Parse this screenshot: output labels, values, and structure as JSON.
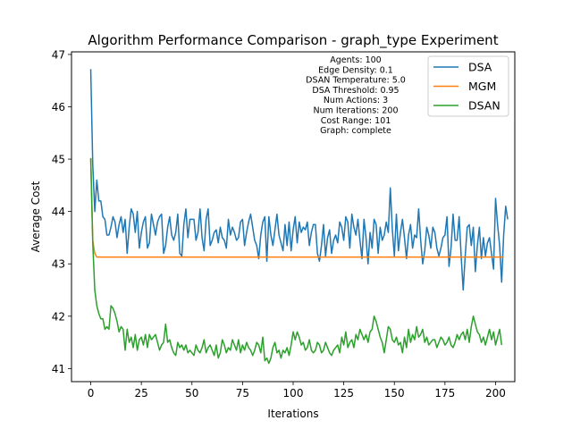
{
  "chart_data": {
    "type": "line",
    "title": "Algorithm Performance Comparison - graph_type Experiment",
    "xlabel": "Iterations",
    "ylabel": "Average Cost",
    "xlim": [
      -9.5,
      209.5
    ],
    "ylim": [
      40.75,
      47.05
    ],
    "xticks": [
      0,
      25,
      50,
      75,
      100,
      125,
      150,
      175,
      200
    ],
    "yticks": [
      41,
      42,
      43,
      44,
      45,
      46,
      47
    ],
    "grid": false,
    "legend_position": "top-right",
    "annotation": [
      "Agents: 100",
      "Edge Density: 0.1",
      "DSAN Temperature: 5.0",
      "DSA Threshold: 0.95",
      "Num Actions: 3",
      "Num Iterations: 200",
      "Cost Range: 101",
      "Graph: complete"
    ],
    "series": [
      {
        "name": "DSA",
        "color": "#1f77b4",
        "values": [
          46.72,
          44.9,
          44.0,
          44.6,
          44.2,
          44.2,
          43.9,
          43.85,
          43.55,
          43.55,
          43.7,
          43.9,
          43.8,
          43.5,
          43.75,
          43.9,
          43.6,
          43.85,
          43.2,
          43.7,
          44.05,
          43.95,
          43.6,
          44.0,
          43.3,
          43.6,
          43.8,
          43.9,
          43.3,
          43.4,
          43.95,
          43.75,
          43.55,
          43.8,
          43.9,
          43.95,
          43.2,
          43.35,
          43.7,
          43.9,
          43.55,
          43.45,
          43.6,
          43.95,
          43.2,
          43.15,
          43.75,
          44.05,
          43.5,
          43.85,
          43.85,
          43.85,
          43.45,
          43.6,
          44.05,
          43.5,
          43.25,
          43.85,
          44.05,
          43.35,
          43.45,
          43.6,
          43.65,
          43.4,
          43.7,
          43.5,
          43.45,
          43.3,
          43.85,
          43.55,
          43.7,
          43.6,
          43.45,
          43.5,
          43.8,
          43.85,
          43.35,
          43.6,
          43.8,
          43.95,
          43.7,
          43.45,
          43.35,
          43.1,
          43.55,
          43.8,
          43.9,
          43.05,
          43.9,
          43.55,
          43.35,
          43.65,
          43.95,
          43.55,
          43.4,
          43.25,
          43.75,
          43.35,
          43.8,
          43.25,
          43.65,
          43.9,
          43.4,
          43.8,
          43.6,
          43.7,
          43.65,
          43.8,
          43.35,
          43.6,
          43.75,
          43.75,
          43.2,
          43.05,
          43.35,
          43.75,
          43.15,
          43.5,
          43.65,
          43.2,
          43.45,
          43.55,
          43.4,
          43.8,
          43.7,
          43.45,
          43.9,
          43.8,
          43.3,
          43.95,
          43.7,
          43.55,
          43.85,
          43.45,
          43.1,
          43.85,
          43.5,
          43.0,
          43.6,
          43.3,
          43.85,
          43.75,
          43.2,
          43.7,
          43.45,
          43.55,
          43.8,
          43.6,
          44.45,
          43.65,
          43.15,
          43.95,
          43.25,
          43.6,
          43.85,
          43.5,
          43.1,
          43.55,
          43.75,
          43.3,
          43.55,
          43.5,
          44.05,
          43.45,
          43.0,
          43.25,
          43.7,
          43.55,
          43.3,
          43.7,
          43.6,
          43.3,
          43.15,
          43.3,
          43.5,
          43.55,
          43.9,
          42.95,
          43.3,
          43.95,
          43.45,
          43.45,
          43.9,
          43.15,
          42.5,
          43.15,
          43.7,
          43.75,
          43.35,
          43.7,
          42.85,
          43.35,
          43.7,
          43.1,
          43.5,
          43.15,
          43.4,
          43.5,
          43.2,
          42.9,
          44.25,
          43.75,
          43.35,
          42.65,
          43.55,
          44.1,
          43.85
        ]
      },
      {
        "name": "MGM",
        "color": "#ff7f0e",
        "values": [
          45.0,
          43.45,
          43.2,
          43.13,
          43.13,
          43.13,
          43.13,
          43.13,
          43.13,
          43.13,
          43.13,
          43.13,
          43.13,
          43.13,
          43.13,
          43.13,
          43.13,
          43.13,
          43.13,
          43.13,
          43.13,
          43.13,
          43.13,
          43.13,
          43.13,
          43.13,
          43.13,
          43.13,
          43.13,
          43.13,
          43.13,
          43.13,
          43.13,
          43.13,
          43.13,
          43.13,
          43.13,
          43.13,
          43.13,
          43.13,
          43.13,
          43.13,
          43.13,
          43.13,
          43.13,
          43.13,
          43.13,
          43.13,
          43.13,
          43.13,
          43.13,
          43.13,
          43.13,
          43.13,
          43.13,
          43.13,
          43.13,
          43.13,
          43.13,
          43.13,
          43.13,
          43.13,
          43.13,
          43.13,
          43.13,
          43.13,
          43.13,
          43.13,
          43.13,
          43.13,
          43.13,
          43.13,
          43.13,
          43.13,
          43.13,
          43.13,
          43.13,
          43.13,
          43.13,
          43.13,
          43.13,
          43.13,
          43.13,
          43.13,
          43.13,
          43.13,
          43.13,
          43.13,
          43.13,
          43.13,
          43.13,
          43.13,
          43.13,
          43.13,
          43.13,
          43.13,
          43.13,
          43.13,
          43.13,
          43.13,
          43.13,
          43.13,
          43.13,
          43.13,
          43.13,
          43.13,
          43.13,
          43.13,
          43.13,
          43.13,
          43.13,
          43.13,
          43.13,
          43.13,
          43.13,
          43.13,
          43.13,
          43.13,
          43.13,
          43.13,
          43.13,
          43.13,
          43.13,
          43.13,
          43.13,
          43.13,
          43.13,
          43.13,
          43.13,
          43.13,
          43.13,
          43.13,
          43.13,
          43.13,
          43.13,
          43.13,
          43.13,
          43.13,
          43.13,
          43.13,
          43.13,
          43.13,
          43.13,
          43.13,
          43.13,
          43.13,
          43.13,
          43.13,
          43.13,
          43.13,
          43.13,
          43.13,
          43.13,
          43.13,
          43.13,
          43.13,
          43.13,
          43.13,
          43.13,
          43.13,
          43.13,
          43.13,
          43.13,
          43.13,
          43.13,
          43.13,
          43.13,
          43.13,
          43.13,
          43.13,
          43.13,
          43.13,
          43.13,
          43.13,
          43.13,
          43.13,
          43.13,
          43.13,
          43.13,
          43.13,
          43.13,
          43.13,
          43.13,
          43.13,
          43.13,
          43.13,
          43.13,
          43.13,
          43.13,
          43.13,
          43.13,
          43.13,
          43.13,
          43.13,
          43.13,
          43.13,
          43.13,
          43.13,
          43.13,
          43.13,
          43.13,
          43.13,
          43.13,
          43.13,
          43.13
        ]
      },
      {
        "name": "DSAN",
        "color": "#2ca02c",
        "values": [
          45.02,
          43.4,
          42.5,
          42.2,
          42.05,
          41.95,
          41.95,
          41.75,
          41.8,
          41.75,
          42.2,
          42.15,
          42.05,
          41.9,
          41.7,
          41.8,
          41.75,
          41.35,
          41.75,
          41.5,
          41.6,
          41.4,
          41.65,
          41.35,
          41.55,
          41.6,
          41.45,
          41.65,
          41.4,
          41.65,
          41.55,
          41.6,
          41.65,
          41.5,
          41.35,
          41.45,
          41.5,
          41.85,
          41.5,
          41.55,
          41.4,
          41.3,
          41.25,
          41.5,
          41.4,
          41.45,
          41.35,
          41.45,
          41.3,
          41.35,
          41.3,
          41.25,
          41.45,
          41.35,
          41.3,
          41.4,
          41.55,
          41.3,
          41.4,
          41.45,
          41.35,
          41.25,
          41.45,
          41.2,
          41.3,
          41.55,
          41.45,
          41.3,
          41.4,
          41.35,
          41.55,
          41.45,
          41.35,
          41.55,
          41.3,
          41.45,
          41.35,
          41.5,
          41.4,
          41.35,
          41.25,
          41.35,
          41.5,
          41.45,
          41.3,
          41.6,
          41.15,
          41.2,
          41.1,
          41.2,
          41.4,
          41.5,
          41.3,
          41.35,
          41.2,
          41.35,
          41.3,
          41.4,
          41.25,
          41.45,
          41.7,
          41.55,
          41.7,
          41.6,
          41.45,
          41.5,
          41.35,
          41.4,
          41.55,
          41.35,
          41.3,
          41.35,
          41.5,
          41.45,
          41.3,
          41.35,
          41.5,
          41.4,
          41.3,
          41.25,
          41.35,
          41.4,
          41.45,
          41.3,
          41.6,
          41.45,
          41.7,
          41.4,
          41.5,
          41.55,
          41.4,
          41.65,
          41.55,
          41.75,
          41.65,
          41.55,
          41.65,
          41.5,
          41.7,
          41.75,
          42.0,
          41.9,
          41.75,
          41.6,
          41.5,
          41.3,
          41.55,
          41.8,
          41.75,
          41.55,
          41.5,
          41.6,
          41.45,
          41.5,
          41.3,
          41.6,
          41.4,
          41.75,
          41.5,
          41.65,
          41.55,
          41.8,
          41.6,
          41.65,
          41.75,
          41.5,
          41.6,
          41.45,
          41.5,
          41.55,
          41.55,
          41.4,
          41.5,
          41.6,
          41.55,
          41.45,
          41.5,
          41.6,
          41.45,
          41.4,
          41.5,
          41.65,
          41.55,
          41.65,
          41.7,
          41.55,
          41.75,
          41.5,
          41.8,
          42.0,
          41.85,
          41.7,
          41.65,
          41.5,
          41.6,
          41.45,
          41.6,
          41.75,
          41.55,
          41.7,
          41.45,
          41.6,
          41.75,
          41.45
        ]
      }
    ]
  }
}
